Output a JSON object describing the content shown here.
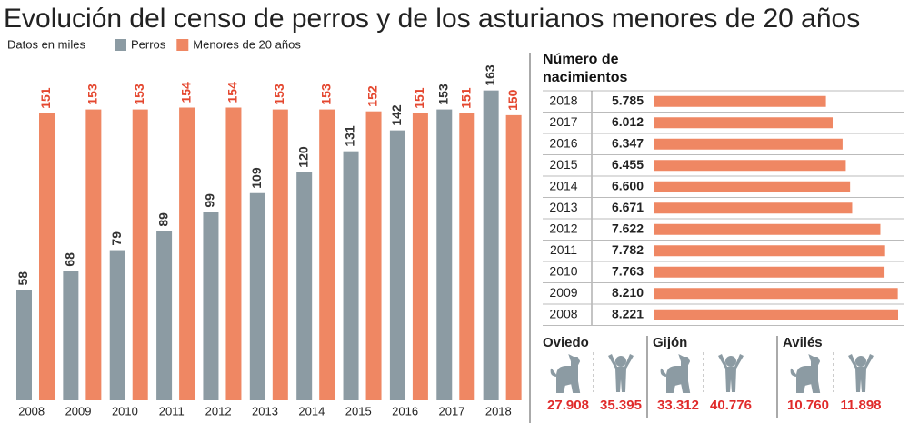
{
  "chart_data": [
    {
      "type": "bar",
      "title": "Evolución del censo de perros y de los asturianos menores de 20 años",
      "subtitle": "Datos en miles",
      "categories": [
        "2008",
        "2009",
        "2010",
        "2011",
        "2012",
        "2013",
        "2014",
        "2015",
        "2016",
        "2017",
        "2018"
      ],
      "series": [
        {
          "name": "Perros",
          "color": "#8c9ba3",
          "values": [
            58,
            68,
            79,
            89,
            99,
            109,
            120,
            131,
            142,
            153,
            163
          ]
        },
        {
          "name": "Menores de 20 años",
          "color": "#ef8763",
          "values": [
            151,
            153,
            153,
            154,
            154,
            153,
            153,
            152,
            151,
            151,
            150
          ]
        }
      ],
      "ylim": [
        0,
        170
      ]
    },
    {
      "type": "hbar",
      "title": "Número de nacimientos",
      "categories": [
        "2018",
        "2017",
        "2016",
        "2015",
        "2014",
        "2013",
        "2012",
        "2011",
        "2010",
        "2009",
        "2008"
      ],
      "values": [
        5785,
        6012,
        6347,
        6455,
        6600,
        6671,
        7622,
        7782,
        7763,
        8210,
        8221
      ],
      "value_labels": [
        "5.785",
        "6.012",
        "6.347",
        "6.455",
        "6.600",
        "6.671",
        "7.622",
        "7.782",
        "7.763",
        "8.210",
        "8.221"
      ],
      "color": "#ef8763",
      "xlim": [
        0,
        8221
      ]
    }
  ],
  "cities": [
    {
      "name": "Oviedo",
      "dogs": "27.908",
      "children": "35.395"
    },
    {
      "name": "Gijón",
      "dogs": "33.312",
      "children": "40.776"
    },
    {
      "name": "Avilés",
      "dogs": "10.760",
      "children": "11.898"
    }
  ]
}
